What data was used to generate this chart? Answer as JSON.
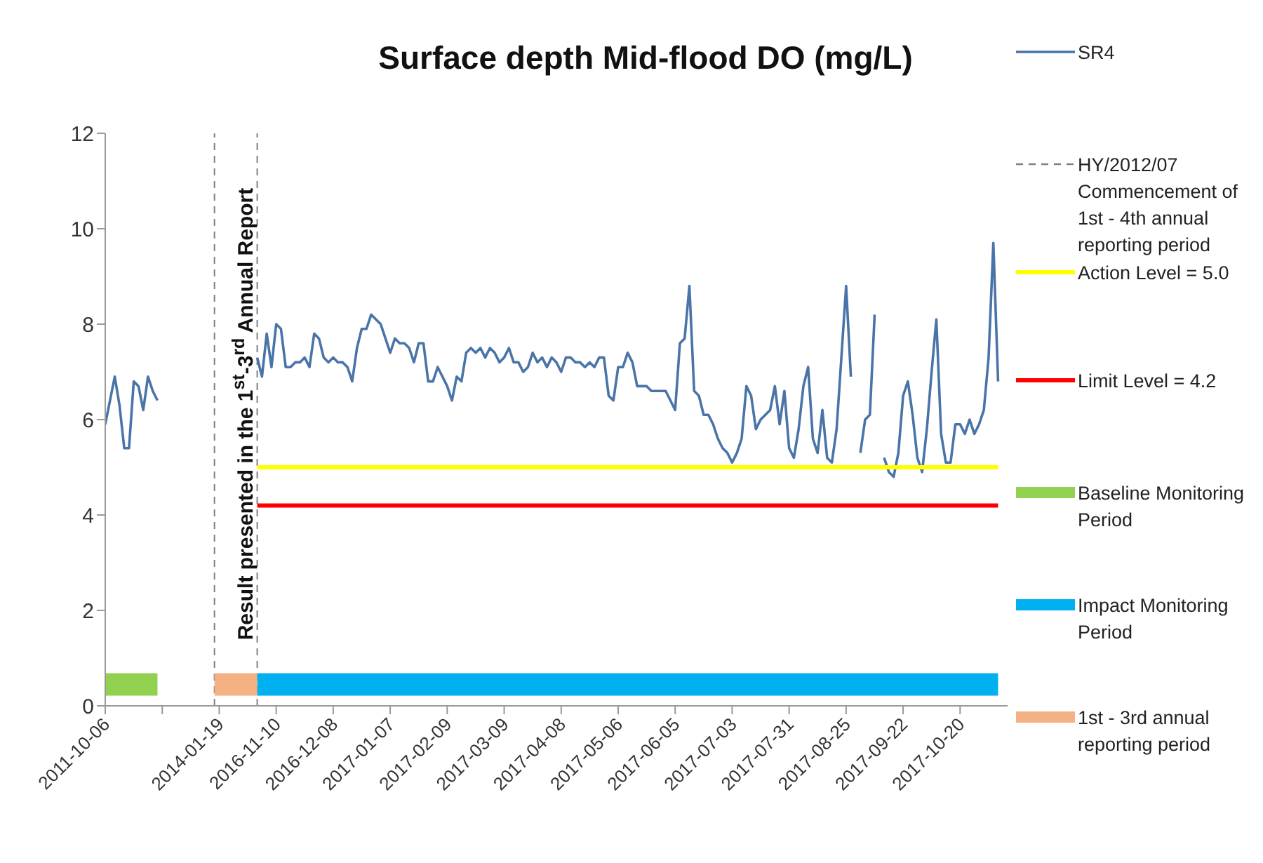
{
  "chart_data": {
    "type": "line",
    "title": "Surface depth Mid-flood DO (mg/L)",
    "categories": [
      "2011-10-06",
      null,
      null,
      null,
      null,
      null,
      null,
      null,
      null,
      null,
      null,
      null,
      null,
      null,
      null,
      null,
      null,
      null,
      null,
      null,
      null,
      null,
      null,
      null,
      "2014-01-19",
      null,
      null,
      null,
      null,
      null,
      null,
      null,
      null,
      null,
      null,
      null,
      "2016-11-10",
      null,
      null,
      null,
      null,
      null,
      null,
      null,
      null,
      null,
      null,
      null,
      "2016-12-08",
      null,
      null,
      null,
      null,
      null,
      null,
      null,
      null,
      null,
      null,
      null,
      "2017-01-07",
      null,
      null,
      null,
      null,
      null,
      null,
      null,
      null,
      null,
      null,
      null,
      "2017-02-09",
      null,
      null,
      null,
      null,
      null,
      null,
      null,
      null,
      null,
      null,
      null,
      "2017-03-09",
      null,
      null,
      null,
      null,
      null,
      null,
      null,
      null,
      null,
      null,
      null,
      "2017-04-08",
      null,
      null,
      null,
      null,
      null,
      null,
      null,
      null,
      null,
      null,
      null,
      "2017-05-06",
      null,
      null,
      null,
      null,
      null,
      null,
      null,
      null,
      null,
      null,
      null,
      "2017-06-05",
      null,
      null,
      null,
      null,
      null,
      null,
      null,
      null,
      null,
      null,
      null,
      "2017-07-03",
      null,
      null,
      null,
      null,
      null,
      null,
      null,
      null,
      null,
      null,
      null,
      "2017-07-31",
      null,
      null,
      null,
      null,
      null,
      null,
      null,
      null,
      null,
      null,
      null,
      "2017-08-25",
      null,
      null,
      null,
      null,
      null,
      null,
      null,
      null,
      null,
      null,
      null,
      "2017-09-22",
      null,
      null,
      null,
      null,
      null,
      null,
      null,
      null,
      null,
      null,
      null,
      "2017-10-20",
      null,
      null,
      null,
      null,
      null,
      null,
      null,
      null
    ],
    "ylim": [
      0,
      12
    ],
    "yticks": [
      0,
      2,
      4,
      6,
      8,
      10,
      12
    ],
    "grid": false,
    "legend": "right",
    "series": [
      {
        "name": "SR4",
        "color": "#4a74a8",
        "values": [
          5.9,
          6.4,
          6.9,
          6.3,
          5.4,
          5.4,
          6.8,
          6.7,
          6.2,
          6.9,
          6.6,
          6.4,
          null,
          null,
          null,
          null,
          null,
          null,
          null,
          null,
          null,
          null,
          null,
          null,
          null,
          null,
          null,
          null,
          null,
          null,
          null,
          null,
          7.3,
          6.9,
          7.8,
          7.1,
          8.0,
          7.9,
          7.1,
          7.1,
          7.2,
          7.2,
          7.3,
          7.1,
          7.8,
          7.7,
          7.3,
          7.2,
          7.3,
          7.2,
          7.2,
          7.1,
          6.8,
          7.5,
          7.9,
          7.9,
          8.2,
          8.1,
          8.0,
          7.7,
          7.4,
          7.7,
          7.6,
          7.6,
          7.5,
          7.2,
          7.6,
          7.6,
          6.8,
          6.8,
          7.1,
          6.9,
          6.7,
          6.4,
          6.9,
          6.8,
          7.4,
          7.5,
          7.4,
          7.5,
          7.3,
          7.5,
          7.4,
          7.2,
          7.3,
          7.5,
          7.2,
          7.2,
          7.0,
          7.1,
          7.4,
          7.2,
          7.3,
          7.1,
          7.3,
          7.2,
          7.0,
          7.3,
          7.3,
          7.2,
          7.2,
          7.1,
          7.2,
          7.1,
          7.3,
          7.3,
          6.5,
          6.4,
          7.1,
          7.1,
          7.4,
          7.2,
          6.7,
          6.7,
          6.7,
          6.6,
          6.6,
          6.6,
          6.6,
          6.4,
          6.2,
          7.6,
          7.7,
          8.8,
          6.6,
          6.5,
          6.1,
          6.1,
          5.9,
          5.6,
          5.4,
          5.3,
          5.1,
          5.3,
          5.6,
          6.7,
          6.5,
          5.8,
          6.0,
          6.1,
          6.2,
          6.7,
          5.9,
          6.6,
          5.4,
          5.2,
          5.8,
          6.7,
          7.1,
          5.6,
          5.3,
          6.2,
          5.2,
          5.1,
          5.8,
          7.3,
          8.8,
          6.9,
          null,
          5.3,
          6.0,
          6.1,
          8.2,
          null,
          5.2,
          4.9,
          4.8,
          5.3,
          6.5,
          6.8,
          6.1,
          5.2,
          4.9,
          5.8,
          7.0,
          8.1,
          5.7,
          5.1,
          5.1,
          5.9,
          5.9,
          5.7,
          6.0,
          5.7,
          5.9,
          6.2,
          7.3,
          9.7,
          6.8
        ]
      },
      {
        "name": "Action Level = 5.0",
        "color": "#ffff00",
        "values": [
          null,
          null,
          null,
          null,
          null,
          null,
          null,
          null,
          null,
          null,
          null,
          null,
          null,
          null,
          null,
          null,
          null,
          null,
          null,
          null,
          null,
          null,
          null,
          null,
          null,
          null,
          null,
          null,
          null,
          null,
          null,
          null,
          5,
          5,
          5,
          5,
          5,
          5,
          5,
          5,
          5,
          5,
          5,
          5,
          5,
          5,
          5,
          5,
          5,
          5,
          5,
          5,
          5,
          5,
          5,
          5,
          5,
          5,
          5,
          5,
          5,
          5,
          5,
          5,
          5,
          5,
          5,
          5,
          5,
          5,
          5,
          5,
          5,
          5,
          5,
          5,
          5,
          5,
          5,
          5,
          5,
          5,
          5,
          5,
          5,
          5,
          5,
          5,
          5,
          5,
          5,
          5,
          5,
          5,
          5,
          5,
          5,
          5,
          5,
          5,
          5,
          5,
          5,
          5,
          5,
          5,
          5,
          5,
          5,
          5,
          5,
          5,
          5,
          5,
          5,
          5,
          5,
          5,
          5,
          5,
          5,
          5,
          5,
          5,
          5,
          5,
          5,
          5,
          5,
          5,
          5,
          5,
          5,
          5,
          5,
          5,
          5,
          5,
          5,
          5,
          5,
          5,
          5,
          5,
          5,
          5,
          5,
          5,
          5,
          5,
          5,
          5,
          5,
          5,
          5,
          5,
          5,
          5,
          5,
          5,
          5,
          5,
          5,
          5,
          5,
          5,
          5,
          5,
          5,
          5,
          5,
          5,
          5,
          5,
          5,
          5,
          5,
          5,
          5,
          5,
          5,
          5,
          5,
          5,
          5,
          5,
          5,
          5,
          5
        ]
      },
      {
        "name": "Limit Level = 4.2",
        "color": "#ff0000",
        "values": [
          null,
          null,
          null,
          null,
          null,
          null,
          null,
          null,
          null,
          null,
          null,
          null,
          null,
          null,
          null,
          null,
          null,
          null,
          null,
          null,
          null,
          null,
          null,
          null,
          null,
          null,
          null,
          null,
          null,
          null,
          null,
          null,
          4.2,
          4.2,
          4.2,
          4.2,
          4.2,
          4.2,
          4.2,
          4.2,
          4.2,
          4.2,
          4.2,
          4.2,
          4.2,
          4.2,
          4.2,
          4.2,
          4.2,
          4.2,
          4.2,
          4.2,
          4.2,
          4.2,
          4.2,
          4.2,
          4.2,
          4.2,
          4.2,
          4.2,
          4.2,
          4.2,
          4.2,
          4.2,
          4.2,
          4.2,
          4.2,
          4.2,
          4.2,
          4.2,
          4.2,
          4.2,
          4.2,
          4.2,
          4.2,
          4.2,
          4.2,
          4.2,
          4.2,
          4.2,
          4.2,
          4.2,
          4.2,
          4.2,
          4.2,
          4.2,
          4.2,
          4.2,
          4.2,
          4.2,
          4.2,
          4.2,
          4.2,
          4.2,
          4.2,
          4.2,
          4.2,
          4.2,
          4.2,
          4.2,
          4.2,
          4.2,
          4.2,
          4.2,
          4.2,
          4.2,
          4.2,
          4.2,
          4.2,
          4.2,
          4.2,
          4.2,
          4.2,
          4.2,
          4.2,
          4.2,
          4.2,
          4.2,
          4.2,
          4.2,
          4.2,
          4.2,
          4.2,
          4.2,
          4.2,
          4.2,
          4.2,
          4.2,
          4.2,
          4.2,
          4.2,
          4.2,
          4.2,
          4.2,
          4.2,
          4.2,
          4.2,
          4.2,
          4.2,
          4.2,
          4.2,
          4.2,
          4.2,
          4.2,
          4.2,
          4.2,
          4.2,
          4.2,
          4.2,
          4.2,
          4.2,
          4.2,
          4.2,
          4.2,
          4.2,
          4.2,
          4.2,
          4.2,
          4.2,
          4.2,
          4.2,
          4.2,
          4.2,
          4.2,
          4.2,
          4.2,
          4.2,
          4.2,
          4.2,
          4.2,
          4.2,
          4.2,
          4.2,
          4.2,
          4.2,
          4.2,
          4.2,
          4.2,
          4.2,
          4.2,
          4.2,
          4.2,
          4.2,
          4.2,
          4.2,
          4.2,
          4.2,
          4.2,
          4.2
        ]
      },
      {
        "name": "Baseline Monitoring Period",
        "color": "#92d050",
        "values": [
          0.45,
          0.45,
          0.45,
          0.45,
          0.45,
          0.45,
          0.45,
          0.45,
          0.45,
          0.45,
          0.45,
          0.45,
          null,
          null,
          null,
          null,
          null,
          null,
          null,
          null,
          null,
          null,
          null,
          null,
          null,
          null,
          null,
          null,
          null,
          null,
          null,
          null,
          null,
          null,
          null,
          null,
          null,
          null,
          null,
          null,
          null,
          null,
          null,
          null,
          null,
          null,
          null,
          null,
          null,
          null,
          null,
          null,
          null,
          null,
          null,
          null,
          null,
          null,
          null,
          null,
          null,
          null,
          null,
          null,
          null,
          null,
          null,
          null,
          null,
          null,
          null,
          null,
          null,
          null,
          null,
          null,
          null,
          null,
          null,
          null,
          null,
          null,
          null,
          null,
          null,
          null,
          null,
          null,
          null,
          null,
          null,
          null,
          null,
          null,
          null,
          null,
          null,
          null,
          null,
          null,
          null,
          null,
          null,
          null,
          null,
          null,
          null,
          null,
          null,
          null,
          null,
          null,
          null,
          null,
          null,
          null,
          null,
          null,
          null,
          null,
          null,
          null,
          null,
          null,
          null,
          null,
          null,
          null,
          null,
          null,
          null,
          null,
          null,
          null,
          null,
          null,
          null,
          null,
          null,
          null,
          null,
          null,
          null,
          null,
          null,
          null,
          null,
          null,
          null,
          null,
          null,
          null,
          null,
          null,
          null,
          null,
          null,
          null,
          null,
          null,
          null,
          null,
          null,
          null,
          null,
          null,
          null,
          null,
          null,
          null,
          null,
          null,
          null,
          null,
          null,
          null,
          null,
          null,
          null,
          null,
          null,
          null,
          null,
          null,
          null,
          null,
          null,
          null,
          null
        ]
      },
      {
        "name": "Impact Monitoring Period",
        "color": "#00b0f0",
        "values": [
          null,
          null,
          null,
          null,
          null,
          null,
          null,
          null,
          null,
          null,
          null,
          null,
          null,
          null,
          null,
          null,
          null,
          null,
          null,
          null,
          null,
          null,
          null,
          null,
          null,
          null,
          null,
          null,
          null,
          null,
          null,
          null,
          0.45,
          0.45,
          0.45,
          0.45,
          0.45,
          0.45,
          0.45,
          0.45,
          0.45,
          0.45,
          0.45,
          0.45,
          0.45,
          0.45,
          0.45,
          0.45,
          0.45,
          0.45,
          0.45,
          0.45,
          0.45,
          0.45,
          0.45,
          0.45,
          0.45,
          0.45,
          0.45,
          0.45,
          0.45,
          0.45,
          0.45,
          0.45,
          0.45,
          0.45,
          0.45,
          0.45,
          0.45,
          0.45,
          0.45,
          0.45,
          0.45,
          0.45,
          0.45,
          0.45,
          0.45,
          0.45,
          0.45,
          0.45,
          0.45,
          0.45,
          0.45,
          0.45,
          0.45,
          0.45,
          0.45,
          0.45,
          0.45,
          0.45,
          0.45,
          0.45,
          0.45,
          0.45,
          0.45,
          0.45,
          0.45,
          0.45,
          0.45,
          0.45,
          0.45,
          0.45,
          0.45,
          0.45,
          0.45,
          0.45,
          0.45,
          0.45,
          0.45,
          0.45,
          0.45,
          0.45,
          0.45,
          0.45,
          0.45,
          0.45,
          0.45,
          0.45,
          0.45,
          0.45,
          0.45,
          0.45,
          0.45,
          0.45,
          0.45,
          0.45,
          0.45,
          0.45,
          0.45,
          0.45,
          0.45,
          0.45,
          0.45,
          0.45,
          0.45,
          0.45,
          0.45,
          0.45,
          0.45,
          0.45,
          0.45,
          0.45,
          0.45,
          0.45,
          0.45,
          0.45,
          0.45,
          0.45,
          0.45,
          0.45,
          0.45,
          0.45,
          0.45,
          0.45,
          0.45,
          0.45,
          0.45,
          0.45,
          0.45,
          0.45,
          0.45,
          0.45,
          0.45,
          0.45,
          0.45,
          0.45,
          0.45,
          0.45,
          0.45,
          0.45,
          0.45,
          0.45,
          0.45,
          0.45,
          0.45,
          0.45,
          0.45,
          0.45,
          0.45,
          0.45,
          0.45,
          0.45,
          0.45,
          0.45,
          0.45,
          0.45,
          0.45,
          0.45,
          0.45
        ]
      },
      {
        "name": "1st - 3rd annual reporting period",
        "color": "#f4b183",
        "values": [
          null,
          null,
          null,
          null,
          null,
          null,
          null,
          null,
          null,
          null,
          null,
          null,
          null,
          null,
          null,
          null,
          null,
          null,
          null,
          null,
          null,
          null,
          null,
          0.45,
          0.45,
          0.45,
          0.45,
          0.45,
          0.45,
          0.45,
          0.45,
          0.45,
          0.45,
          null,
          null,
          null,
          null,
          null,
          null,
          null,
          null,
          null,
          null,
          null,
          null,
          null,
          null,
          null,
          null,
          null,
          null,
          null,
          null,
          null,
          null,
          null,
          null,
          null,
          null,
          null,
          null,
          null,
          null,
          null,
          null,
          null,
          null,
          null,
          null,
          null,
          null,
          null,
          null,
          null,
          null,
          null,
          null,
          null,
          null,
          null,
          null,
          null,
          null,
          null,
          null,
          null,
          null,
          null,
          null,
          null,
          null,
          null,
          null,
          null,
          null,
          null,
          null,
          null,
          null,
          null,
          null,
          null,
          null,
          null,
          null,
          null,
          null,
          null,
          null,
          null,
          null,
          null,
          null,
          null,
          null,
          null,
          null,
          null,
          null,
          null,
          null,
          null,
          null,
          null,
          null,
          null,
          null,
          null,
          null,
          null,
          null,
          null,
          null,
          null,
          null,
          null,
          null,
          null,
          null,
          null,
          null,
          null,
          null,
          null,
          null,
          null,
          null,
          null,
          null,
          null,
          null,
          null,
          null,
          null,
          null,
          null,
          null,
          null,
          null,
          null,
          null,
          null,
          null,
          null,
          null,
          null,
          null,
          null,
          null,
          null,
          null,
          null,
          null,
          null,
          null,
          null,
          null,
          null,
          null,
          null,
          null,
          null,
          null,
          null,
          null,
          null,
          null,
          null,
          null
        ]
      }
    ],
    "annotations": [
      "Result presented in the 1$^{st}$-3$^{rd}$ Annual Report",
      "HY/2012/07 Commencement of 1st - 4th annual reporting period"
    ]
  }
}
